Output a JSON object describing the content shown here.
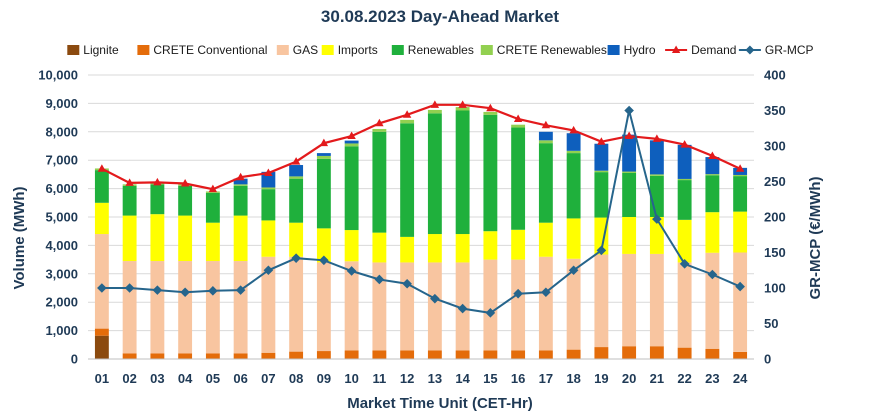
{
  "chart_data": {
    "type": "bar",
    "title": "30.08.2023  Day-Ahead Market",
    "xlabel": "Market Time Unit (CET-Hr)",
    "ylabel": "Volume (MWh)",
    "y2label": "GR-MCP (€/MWh)",
    "ylim": [
      0,
      10000
    ],
    "y2lim": [
      0,
      400
    ],
    "yticks": [
      "0",
      "1,000",
      "2,000",
      "3,000",
      "4,000",
      "5,000",
      "6,000",
      "7,000",
      "8,000",
      "9,000",
      "10,000"
    ],
    "y2ticks": [
      "0",
      "50",
      "100",
      "150",
      "200",
      "250",
      "300",
      "350",
      "400"
    ],
    "categories": [
      "01",
      "02",
      "03",
      "04",
      "05",
      "06",
      "07",
      "08",
      "09",
      "10",
      "11",
      "12",
      "13",
      "14",
      "15",
      "16",
      "17",
      "18",
      "19",
      "20",
      "21",
      "22",
      "23",
      "24"
    ],
    "series": [
      {
        "name": "Lignite",
        "kind": "bar",
        "color": "#8b4a0f",
        "values": [
          820,
          0,
          0,
          0,
          0,
          0,
          0,
          0,
          0,
          0,
          0,
          0,
          0,
          0,
          0,
          0,
          0,
          0,
          0,
          0,
          0,
          0,
          0,
          0
        ]
      },
      {
        "name": "CRETE Conventional",
        "kind": "bar",
        "color": "#e46c0a",
        "values": [
          250,
          200,
          200,
          200,
          200,
          200,
          220,
          260,
          280,
          300,
          300,
          300,
          300,
          300,
          300,
          300,
          300,
          330,
          420,
          450,
          450,
          400,
          360,
          250
        ]
      },
      {
        "name": "GAS",
        "kind": "bar",
        "color": "#f8c5a0",
        "values": [
          3330,
          3250,
          3250,
          3250,
          3250,
          3250,
          3380,
          3340,
          3120,
          3140,
          3100,
          3100,
          3100,
          3100,
          3200,
          3200,
          3300,
          3200,
          3260,
          3250,
          3250,
          3000,
          3380,
          3500
        ]
      },
      {
        "name": "Imports",
        "kind": "bar",
        "color": "#ffff00",
        "values": [
          1100,
          1600,
          1650,
          1600,
          1350,
          1600,
          1280,
          1200,
          1200,
          1100,
          1050,
          900,
          1000,
          1000,
          1000,
          1050,
          1200,
          1420,
          1300,
          1300,
          1300,
          1500,
          1430,
          1440
        ]
      },
      {
        "name": "Renewables",
        "kind": "bar",
        "color": "#1fb03c",
        "values": [
          1150,
          1050,
          1050,
          1050,
          1050,
          1050,
          1100,
          1550,
          2450,
          2950,
          3550,
          4000,
          4250,
          4350,
          4100,
          3600,
          2800,
          2300,
          1600,
          1550,
          1450,
          1400,
          1300,
          1250
        ]
      },
      {
        "name": "CRETE Renewables",
        "kind": "bar",
        "color": "#92d050",
        "values": [
          60,
          50,
          50,
          50,
          50,
          50,
          60,
          80,
          100,
          100,
          100,
          120,
          120,
          120,
          100,
          100,
          100,
          80,
          50,
          50,
          50,
          40,
          40,
          40
        ]
      },
      {
        "name": "Hydro",
        "kind": "bar",
        "color": "#0e5fbd",
        "values": [
          0,
          0,
          0,
          0,
          0,
          200,
          550,
          400,
          100,
          100,
          0,
          0,
          0,
          0,
          0,
          0,
          300,
          620,
          950,
          1300,
          1200,
          1200,
          600,
          250
        ]
      },
      {
        "name": "Demand",
        "kind": "line",
        "axis": "left",
        "color": "#e31a1c",
        "values": [
          6700,
          6200,
          6220,
          6180,
          5980,
          6400,
          6550,
          6950,
          7600,
          7850,
          8300,
          8600,
          8950,
          8950,
          8830,
          8450,
          8230,
          8050,
          7650,
          7850,
          7750,
          7550,
          7150,
          6700
        ]
      },
      {
        "name": "GR-MCP",
        "kind": "line",
        "axis": "right",
        "color": "#26658c",
        "values": [
          100,
          100,
          97,
          94,
          96,
          97,
          125,
          142,
          139,
          124,
          112,
          106,
          85,
          71,
          65,
          92,
          94,
          125,
          153,
          350,
          197,
          134,
          119,
          102
        ]
      }
    ]
  }
}
